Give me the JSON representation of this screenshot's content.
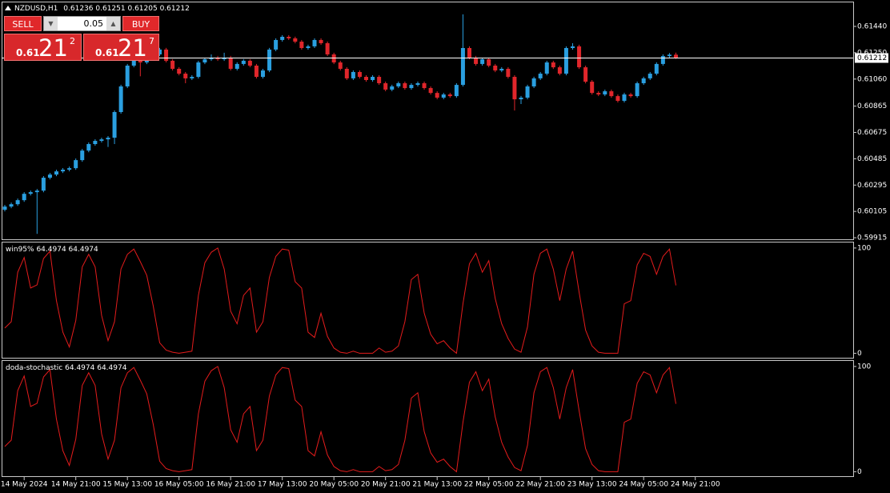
{
  "chart_data": [
    {
      "type": "candlestick",
      "title": "NZDUSD,H1",
      "up_color": "#2a9fe0",
      "down_color": "#e0262b",
      "line_color": "#ffffff",
      "ylim": [
        0.59898,
        0.61619
      ],
      "yticks": [
        {
          "value": 0.6144,
          "label": "0.61440"
        },
        {
          "value": 0.6125,
          "label": "0.61250"
        },
        {
          "value": 0.6106,
          "label": "0.61060"
        },
        0.60865,
        0.60675,
        0.60485,
        0.60295,
        0.60105,
        0.59915
      ],
      "categories": [
        null,
        null,
        null,
        "14 May 2024",
        null,
        null,
        null,
        null,
        null,
        null,
        null,
        "14 May 21:00",
        null,
        null,
        null,
        null,
        null,
        null,
        null,
        "15 May 13:00",
        null,
        null,
        null,
        null,
        null,
        null,
        null,
        "16 May 05:00",
        null,
        null,
        null,
        null,
        null,
        null,
        null,
        "16 May 21:00",
        null,
        null,
        null,
        null,
        null,
        null,
        null,
        "17 May 13:00",
        null,
        null,
        null,
        null,
        null,
        null,
        null,
        "20 May 05:00",
        null,
        null,
        null,
        null,
        null,
        null,
        null,
        "20 May 21:00",
        null,
        null,
        null,
        null,
        null,
        null,
        null,
        "21 May 13:00",
        null,
        null,
        null,
        null,
        null,
        null,
        null,
        "22 May 05:00",
        null,
        null,
        null,
        null,
        null,
        null,
        null,
        "22 May 21:00",
        null,
        null,
        null,
        null,
        null,
        null,
        null,
        "23 May 13:00",
        null,
        null,
        null,
        null,
        null,
        null,
        null,
        "24 May 05:00",
        null,
        null,
        null,
        null,
        null,
        null,
        null,
        "24 May 21:00"
      ],
      "candles": [
        [
          0.60117,
          0.60152,
          0.60105,
          0.6014
        ],
        [
          0.6014,
          0.60169,
          0.60128,
          0.60157
        ],
        [
          0.60157,
          0.60198,
          0.60145,
          0.60186
        ],
        [
          0.60186,
          0.60244,
          0.60174,
          0.60232
        ],
        [
          0.60232,
          0.60256,
          0.6022,
          0.60244
        ],
        [
          0.60244,
          0.60267,
          0.59943,
          0.60255
        ],
        [
          0.60255,
          0.6036,
          0.60243,
          0.60348
        ],
        [
          0.60348,
          0.60383,
          0.60336,
          0.60371
        ],
        [
          0.60371,
          0.60406,
          0.60359,
          0.60394
        ],
        [
          0.60394,
          0.60418,
          0.60382,
          0.60406
        ],
        [
          0.60406,
          0.60429,
          0.60394,
          0.60417
        ],
        [
          0.60417,
          0.60487,
          0.60405,
          0.60475
        ],
        [
          0.60475,
          0.60556,
          0.60463,
          0.60544
        ],
        [
          0.60544,
          0.60603,
          0.60532,
          0.60591
        ],
        [
          0.60591,
          0.60626,
          0.60579,
          0.60614
        ],
        [
          0.60614,
          0.60637,
          0.60602,
          0.60625
        ],
        [
          0.60625,
          0.60649,
          0.6057,
          0.60637
        ],
        [
          0.60637,
          0.60834,
          0.60591,
          0.60822
        ],
        [
          0.60822,
          0.61019,
          0.6081,
          0.61007
        ],
        [
          0.61007,
          0.61169,
          0.60995,
          0.61157
        ],
        [
          0.61157,
          0.61227,
          0.61145,
          0.61215
        ],
        [
          0.61215,
          0.61227,
          0.6108,
          0.6118
        ],
        [
          0.6118,
          0.61238,
          0.61168,
          0.61226
        ],
        [
          0.61226,
          0.6125,
          0.61214,
          0.61238
        ],
        [
          0.61238,
          0.61285,
          0.61226,
          0.61273
        ],
        [
          0.61273,
          0.61285,
          0.6118,
          0.61192
        ],
        [
          0.61192,
          0.61204,
          0.61122,
          0.61134
        ],
        [
          0.61134,
          0.61146,
          0.61087,
          0.61099
        ],
        [
          0.61099,
          0.61111,
          0.6103,
          0.61065
        ],
        [
          0.61065,
          0.61088,
          0.61053,
          0.61076
        ],
        [
          0.61076,
          0.61192,
          0.61064,
          0.6118
        ],
        [
          0.6118,
          0.61215,
          0.61168,
          0.61203
        ],
        [
          0.61203,
          0.61238,
          0.61191,
          0.61215
        ],
        [
          0.61215,
          0.61227,
          0.61191,
          0.61203
        ],
        [
          0.61203,
          0.6125,
          0.61191,
          0.61215
        ],
        [
          0.61215,
          0.61227,
          0.61122,
          0.61134
        ],
        [
          0.61134,
          0.61181,
          0.61122,
          0.61169
        ],
        [
          0.61169,
          0.61204,
          0.61157,
          0.61192
        ],
        [
          0.61192,
          0.61204,
          0.61145,
          0.61157
        ],
        [
          0.61157,
          0.61169,
          0.61064,
          0.61076
        ],
        [
          0.61076,
          0.61134,
          0.61064,
          0.61122
        ],
        [
          0.61122,
          0.61285,
          0.6111,
          0.61273
        ],
        [
          0.61273,
          0.61354,
          0.61261,
          0.61342
        ],
        [
          0.61342,
          0.61377,
          0.6133,
          0.61365
        ],
        [
          0.61365,
          0.61377,
          0.61342,
          0.61354
        ],
        [
          0.61354,
          0.61366,
          0.61318,
          0.6133
        ],
        [
          0.6133,
          0.61342,
          0.61272,
          0.61284
        ],
        [
          0.61284,
          0.61308,
          0.61272,
          0.61296
        ],
        [
          0.61296,
          0.61354,
          0.61284,
          0.61342
        ],
        [
          0.61342,
          0.61354,
          0.61307,
          0.61319
        ],
        [
          0.61319,
          0.61331,
          0.61226,
          0.61238
        ],
        [
          0.61238,
          0.6125,
          0.61168,
          0.6118
        ],
        [
          0.6118,
          0.61192,
          0.61122,
          0.61134
        ],
        [
          0.61134,
          0.61146,
          0.61053,
          0.61065
        ],
        [
          0.61065,
          0.61123,
          0.61053,
          0.61111
        ],
        [
          0.61111,
          0.61123,
          0.61064,
          0.61076
        ],
        [
          0.61076,
          0.61088,
          0.61041,
          0.61053
        ],
        [
          0.61053,
          0.61088,
          0.61041,
          0.61076
        ],
        [
          0.61076,
          0.61088,
          0.61018,
          0.6103
        ],
        [
          0.6103,
          0.61042,
          0.60972,
          0.60984
        ],
        [
          0.60984,
          0.61019,
          0.60972,
          0.61007
        ],
        [
          0.61007,
          0.61042,
          0.60995,
          0.6103
        ],
        [
          0.6103,
          0.61042,
          0.60983,
          0.60995
        ],
        [
          0.60995,
          0.6103,
          0.60983,
          0.61018
        ],
        [
          0.61018,
          0.61042,
          0.61006,
          0.6103
        ],
        [
          0.6103,
          0.61042,
          0.60983,
          0.60995
        ],
        [
          0.60995,
          0.61007,
          0.60948,
          0.6096
        ],
        [
          0.6096,
          0.60972,
          0.60914,
          0.60926
        ],
        [
          0.60926,
          0.60961,
          0.60914,
          0.60949
        ],
        [
          0.60949,
          0.60961,
          0.60925,
          0.60937
        ],
        [
          0.60937,
          0.6103,
          0.60925,
          0.61018
        ],
        [
          0.61018,
          0.61527,
          0.61006,
          0.61284
        ],
        [
          0.61284,
          0.61296,
          0.61203,
          0.61215
        ],
        [
          0.61215,
          0.61227,
          0.61157,
          0.61169
        ],
        [
          0.61169,
          0.61215,
          0.61157,
          0.61203
        ],
        [
          0.61203,
          0.61215,
          0.61145,
          0.61157
        ],
        [
          0.61157,
          0.61169,
          0.6111,
          0.61122
        ],
        [
          0.61122,
          0.61146,
          0.6111,
          0.61134
        ],
        [
          0.61134,
          0.61146,
          0.61064,
          0.61076
        ],
        [
          0.61076,
          0.61088,
          0.60833,
          0.60914
        ],
        [
          0.60914,
          0.60938,
          0.6088,
          0.60926
        ],
        [
          0.60926,
          0.61019,
          0.60914,
          0.61007
        ],
        [
          0.61007,
          0.61077,
          0.60995,
          0.61065
        ],
        [
          0.61065,
          0.61111,
          0.61053,
          0.61099
        ],
        [
          0.61099,
          0.61192,
          0.61087,
          0.6118
        ],
        [
          0.6118,
          0.61192,
          0.61133,
          0.61145
        ],
        [
          0.61145,
          0.61157,
          0.61087,
          0.61099
        ],
        [
          0.61099,
          0.61296,
          0.61087,
          0.61284
        ],
        [
          0.61284,
          0.61319,
          0.61272,
          0.61296
        ],
        [
          0.61296,
          0.61308,
          0.61133,
          0.61145
        ],
        [
          0.61145,
          0.61157,
          0.61029,
          0.61041
        ],
        [
          0.61041,
          0.61053,
          0.60948,
          0.6096
        ],
        [
          0.6096,
          0.60972,
          0.60937,
          0.60949
        ],
        [
          0.60949,
          0.60984,
          0.60937,
          0.60972
        ],
        [
          0.60972,
          0.60984,
          0.60925,
          0.60937
        ],
        [
          0.60937,
          0.60949,
          0.60891,
          0.60903
        ],
        [
          0.60903,
          0.60961,
          0.60891,
          0.60949
        ],
        [
          0.60949,
          0.60961,
          0.60925,
          0.60937
        ],
        [
          0.60937,
          0.61042,
          0.60925,
          0.6103
        ],
        [
          0.6103,
          0.61077,
          0.61018,
          0.61065
        ],
        [
          0.61065,
          0.61111,
          0.61053,
          0.61099
        ],
        [
          0.61099,
          0.61181,
          0.61087,
          0.61169
        ],
        [
          0.61169,
          0.61238,
          0.61157,
          0.61226
        ],
        [
          0.61226,
          0.61248,
          0.61214,
          0.61236
        ],
        [
          0.61236,
          0.61251,
          0.61205,
          0.61212
        ],
        null,
        null,
        null
      ]
    },
    {
      "type": "line",
      "title": "win95%",
      "color": "#e41c1c",
      "ylim": [
        -5,
        106
      ],
      "yticks": [
        100,
        0
      ],
      "values": [
        24,
        30,
        77,
        91,
        62,
        65,
        90,
        97,
        50,
        20,
        6,
        31,
        82,
        94,
        82,
        36,
        12,
        30,
        80,
        94,
        99,
        87,
        74,
        45,
        10,
        3,
        1,
        0,
        1,
        2,
        55,
        86,
        96,
        100,
        80,
        40,
        28,
        55,
        62,
        20,
        30,
        72,
        92,
        99,
        98,
        68,
        62,
        20,
        15,
        38,
        16,
        5,
        1,
        0,
        2,
        0,
        0,
        0,
        5,
        1,
        2,
        7,
        30,
        70,
        75,
        38,
        18,
        9,
        12,
        5,
        0,
        47,
        85,
        95,
        77,
        88,
        52,
        28,
        14,
        4,
        1,
        25,
        75,
        95,
        99,
        80,
        50,
        80,
        97,
        58,
        22,
        7,
        1,
        0,
        0,
        0,
        47,
        50,
        84,
        95,
        92,
        75,
        92,
        99,
        64.4974
      ]
    },
    {
      "type": "line",
      "title": "doda-stochastic",
      "color": "#e41c1c",
      "ylim": [
        -5,
        106
      ],
      "yticks": [
        100,
        0
      ],
      "values": [
        24,
        30,
        77,
        91,
        62,
        65,
        90,
        97,
        50,
        20,
        6,
        31,
        82,
        94,
        82,
        36,
        12,
        30,
        80,
        94,
        99,
        87,
        74,
        45,
        10,
        3,
        1,
        0,
        1,
        2,
        55,
        86,
        96,
        100,
        80,
        40,
        28,
        55,
        62,
        20,
        30,
        72,
        92,
        99,
        98,
        68,
        62,
        20,
        15,
        38,
        16,
        5,
        1,
        0,
        2,
        0,
        0,
        0,
        5,
        1,
        2,
        7,
        30,
        70,
        75,
        38,
        18,
        9,
        12,
        5,
        0,
        47,
        85,
        95,
        77,
        88,
        52,
        28,
        14,
        4,
        1,
        25,
        75,
        95,
        99,
        80,
        50,
        80,
        97,
        58,
        22,
        7,
        1,
        0,
        0,
        0,
        47,
        50,
        84,
        95,
        92,
        75,
        92,
        99,
        64.4974
      ]
    }
  ],
  "trade_panel": {
    "sell": "SELL",
    "buy": "BUY",
    "lot": 0.05,
    "bid": {
      "big": "0.61",
      "pips": "21",
      "point": "2"
    },
    "ask": {
      "big": "0.61",
      "pips": "21",
      "point": "7"
    }
  }
}
